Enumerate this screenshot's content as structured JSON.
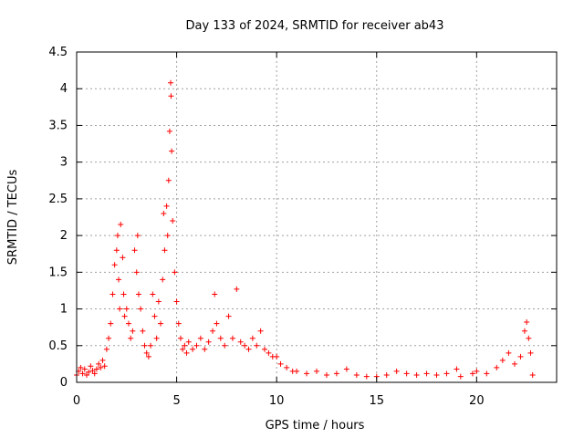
{
  "chart_data": {
    "type": "scatter",
    "title": "Day 133 of 2024, SRMTID for receiver ab43",
    "xlabel": "GPS time / hours",
    "ylabel": "SRMTID / TECUs",
    "xlim": [
      0,
      24
    ],
    "ylim": [
      0,
      4.5
    ],
    "xticks": [
      0,
      5,
      10,
      15,
      20
    ],
    "xtick_labels": [
      "0",
      "5",
      "10",
      "15",
      "20"
    ],
    "yticks": [
      0,
      0.5,
      1,
      1.5,
      2,
      2.5,
      3,
      3.5,
      4,
      4.5
    ],
    "ytick_labels": [
      "0",
      "0.5",
      "1",
      "1.5",
      "2",
      "2.5",
      "3",
      "3.5",
      "4",
      "4.5"
    ],
    "grid": true,
    "marker": "+",
    "color": "#ff0000",
    "series": [
      {
        "name": "SRMTID",
        "points": [
          [
            0.0,
            0.1
          ],
          [
            0.1,
            0.15
          ],
          [
            0.2,
            0.2
          ],
          [
            0.3,
            0.12
          ],
          [
            0.4,
            0.18
          ],
          [
            0.5,
            0.1
          ],
          [
            0.6,
            0.14
          ],
          [
            0.7,
            0.22
          ],
          [
            0.8,
            0.16
          ],
          [
            0.9,
            0.12
          ],
          [
            1.0,
            0.18
          ],
          [
            1.1,
            0.25
          ],
          [
            1.2,
            0.2
          ],
          [
            1.3,
            0.3
          ],
          [
            1.4,
            0.22
          ],
          [
            1.5,
            0.45
          ],
          [
            1.6,
            0.6
          ],
          [
            1.7,
            0.8
          ],
          [
            1.8,
            1.2
          ],
          [
            1.9,
            1.6
          ],
          [
            2.0,
            1.8
          ],
          [
            2.05,
            2.0
          ],
          [
            2.1,
            1.4
          ],
          [
            2.15,
            1.0
          ],
          [
            2.2,
            2.15
          ],
          [
            2.3,
            1.7
          ],
          [
            2.35,
            1.2
          ],
          [
            2.4,
            0.9
          ],
          [
            2.5,
            1.0
          ],
          [
            2.6,
            0.8
          ],
          [
            2.7,
            0.6
          ],
          [
            2.8,
            0.7
          ],
          [
            2.9,
            1.8
          ],
          [
            3.0,
            1.5
          ],
          [
            3.05,
            2.0
          ],
          [
            3.1,
            1.2
          ],
          [
            3.2,
            1.0
          ],
          [
            3.3,
            0.7
          ],
          [
            3.4,
            0.5
          ],
          [
            3.5,
            0.4
          ],
          [
            3.6,
            0.35
          ],
          [
            3.7,
            0.5
          ],
          [
            3.8,
            1.2
          ],
          [
            3.9,
            0.9
          ],
          [
            4.0,
            0.6
          ],
          [
            4.1,
            1.1
          ],
          [
            4.2,
            0.8
          ],
          [
            4.3,
            1.4
          ],
          [
            4.35,
            2.3
          ],
          [
            4.4,
            1.8
          ],
          [
            4.5,
            2.4
          ],
          [
            4.55,
            2.0
          ],
          [
            4.6,
            2.75
          ],
          [
            4.65,
            3.42
          ],
          [
            4.7,
            4.08
          ],
          [
            4.72,
            3.9
          ],
          [
            4.75,
            3.15
          ],
          [
            4.8,
            2.2
          ],
          [
            4.9,
            1.5
          ],
          [
            5.0,
            1.1
          ],
          [
            5.1,
            0.8
          ],
          [
            5.2,
            0.6
          ],
          [
            5.3,
            0.45
          ],
          [
            5.4,
            0.5
          ],
          [
            5.5,
            0.4
          ],
          [
            5.6,
            0.55
          ],
          [
            5.8,
            0.45
          ],
          [
            6.0,
            0.5
          ],
          [
            6.2,
            0.6
          ],
          [
            6.4,
            0.45
          ],
          [
            6.6,
            0.55
          ],
          [
            6.8,
            0.7
          ],
          [
            6.9,
            1.2
          ],
          [
            7.0,
            0.8
          ],
          [
            7.2,
            0.6
          ],
          [
            7.4,
            0.5
          ],
          [
            7.6,
            0.9
          ],
          [
            7.8,
            0.6
          ],
          [
            8.0,
            1.27
          ],
          [
            8.2,
            0.55
          ],
          [
            8.4,
            0.5
          ],
          [
            8.6,
            0.45
          ],
          [
            8.8,
            0.6
          ],
          [
            9.0,
            0.5
          ],
          [
            9.2,
            0.7
          ],
          [
            9.4,
            0.45
          ],
          [
            9.6,
            0.4
          ],
          [
            9.8,
            0.35
          ],
          [
            10.0,
            0.35
          ],
          [
            10.2,
            0.25
          ],
          [
            10.5,
            0.2
          ],
          [
            10.8,
            0.15
          ],
          [
            11.0,
            0.15
          ],
          [
            11.5,
            0.12
          ],
          [
            12.0,
            0.15
          ],
          [
            12.5,
            0.1
          ],
          [
            13.0,
            0.12
          ],
          [
            13.5,
            0.18
          ],
          [
            14.0,
            0.1
          ],
          [
            14.5,
            0.08
          ],
          [
            15.0,
            0.08
          ],
          [
            15.5,
            0.1
          ],
          [
            16.0,
            0.15
          ],
          [
            16.5,
            0.12
          ],
          [
            17.0,
            0.1
          ],
          [
            17.5,
            0.12
          ],
          [
            18.0,
            0.1
          ],
          [
            18.5,
            0.12
          ],
          [
            19.0,
            0.18
          ],
          [
            19.2,
            0.08
          ],
          [
            19.8,
            0.12
          ],
          [
            20.0,
            0.15
          ],
          [
            20.5,
            0.12
          ],
          [
            21.0,
            0.2
          ],
          [
            21.3,
            0.3
          ],
          [
            21.6,
            0.4
          ],
          [
            21.9,
            0.25
          ],
          [
            22.2,
            0.35
          ],
          [
            22.4,
            0.7
          ],
          [
            22.5,
            0.82
          ],
          [
            22.6,
            0.6
          ],
          [
            22.7,
            0.4
          ],
          [
            22.8,
            0.1
          ]
        ]
      }
    ]
  }
}
